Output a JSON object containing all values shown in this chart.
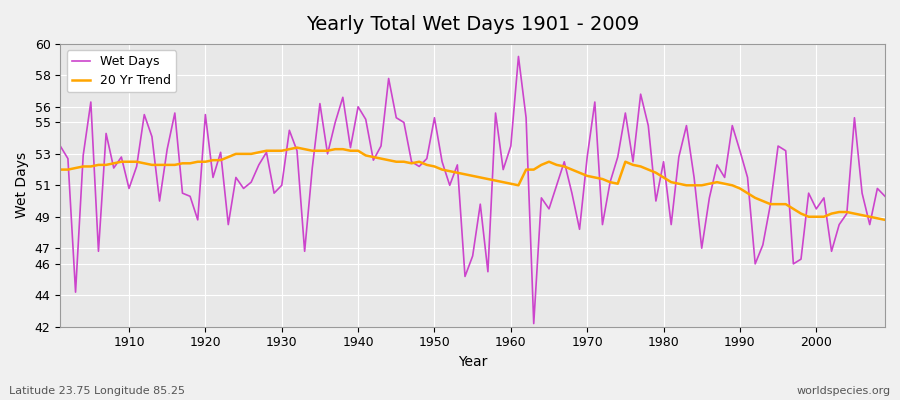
{
  "title": "Yearly Total Wet Days 1901 - 2009",
  "xlabel": "Year",
  "ylabel": "Wet Days",
  "footnote_left": "Latitude 23.75 Longitude 85.25",
  "footnote_right": "worldspecies.org",
  "line_color": "#CC44CC",
  "trend_color": "#FFA500",
  "background_color": "#E8E8E8",
  "ylim": [
    42,
    60
  ],
  "yticks": [
    42,
    44,
    46,
    47,
    49,
    51,
    53,
    55,
    56,
    58,
    60
  ],
  "years": [
    1901,
    1902,
    1903,
    1904,
    1905,
    1906,
    1907,
    1908,
    1909,
    1910,
    1911,
    1912,
    1913,
    1914,
    1915,
    1916,
    1917,
    1918,
    1919,
    1920,
    1921,
    1922,
    1923,
    1924,
    1925,
    1926,
    1927,
    1928,
    1929,
    1930,
    1931,
    1932,
    1933,
    1934,
    1935,
    1936,
    1937,
    1938,
    1939,
    1940,
    1941,
    1942,
    1943,
    1944,
    1945,
    1946,
    1947,
    1948,
    1949,
    1950,
    1951,
    1952,
    1953,
    1954,
    1955,
    1956,
    1957,
    1958,
    1959,
    1960,
    1961,
    1962,
    1963,
    1964,
    1965,
    1966,
    1967,
    1968,
    1969,
    1970,
    1971,
    1972,
    1973,
    1974,
    1975,
    1976,
    1977,
    1978,
    1979,
    1980,
    1981,
    1982,
    1983,
    1984,
    1985,
    1986,
    1987,
    1988,
    1989,
    1990,
    1991,
    1992,
    1993,
    1994,
    1995,
    1996,
    1997,
    1998,
    1999,
    2000,
    2001,
    2002,
    2003,
    2004,
    2005,
    2006,
    2007,
    2008,
    2009
  ],
  "wet_days": [
    53.5,
    52.7,
    44.2,
    52.9,
    56.3,
    46.8,
    54.3,
    52.1,
    52.8,
    50.8,
    52.2,
    55.5,
    54.1,
    50.0,
    53.3,
    55.6,
    50.5,
    50.3,
    48.8,
    55.5,
    51.5,
    53.1,
    48.5,
    51.5,
    50.8,
    51.2,
    52.3,
    53.1,
    50.5,
    51.0,
    54.5,
    53.2,
    46.8,
    52.1,
    56.2,
    53.0,
    55.0,
    56.6,
    53.4,
    56.0,
    55.2,
    52.6,
    53.5,
    57.8,
    55.3,
    55.0,
    52.5,
    52.2,
    52.7,
    55.3,
    52.5,
    51.0,
    52.3,
    45.2,
    46.5,
    49.8,
    45.5,
    55.6,
    52.0,
    53.5,
    59.2,
    55.3,
    42.2,
    50.2,
    49.5,
    51.0,
    52.5,
    50.5,
    48.2,
    52.8,
    56.3,
    48.5,
    51.2,
    52.8,
    55.6,
    52.5,
    56.8,
    54.8,
    50.0,
    52.5,
    48.5,
    52.8,
    54.8,
    51.5,
    47.0,
    50.2,
    52.3,
    51.5,
    54.8,
    53.2,
    51.5,
    46.0,
    47.2,
    49.8,
    53.5,
    53.2,
    46.0,
    46.3,
    50.5,
    49.5,
    50.2,
    46.8,
    48.5,
    49.2,
    55.3,
    50.5,
    48.5,
    50.8,
    50.3
  ],
  "trend": [
    52.0,
    52.0,
    52.1,
    52.2,
    52.2,
    52.3,
    52.3,
    52.4,
    52.5,
    52.5,
    52.5,
    52.4,
    52.3,
    52.3,
    52.3,
    52.3,
    52.4,
    52.4,
    52.5,
    52.5,
    52.6,
    52.6,
    52.8,
    53.0,
    53.0,
    53.0,
    53.1,
    53.2,
    53.2,
    53.2,
    53.3,
    53.4,
    53.3,
    53.2,
    53.2,
    53.2,
    53.3,
    53.3,
    53.2,
    53.2,
    52.9,
    52.8,
    52.7,
    52.6,
    52.5,
    52.5,
    52.4,
    52.5,
    52.3,
    52.2,
    52.0,
    51.9,
    51.8,
    51.7,
    51.6,
    51.5,
    51.4,
    51.3,
    51.2,
    51.1,
    51.0,
    52.0,
    52.0,
    52.3,
    52.5,
    52.3,
    52.2,
    52.0,
    51.8,
    51.6,
    51.5,
    51.4,
    51.2,
    51.1,
    52.5,
    52.3,
    52.2,
    52.0,
    51.8,
    51.5,
    51.2,
    51.1,
    51.0,
    51.0,
    51.0,
    51.1,
    51.2,
    51.1,
    51.0,
    50.8,
    50.5,
    50.2,
    50.0,
    49.8,
    49.8,
    49.8,
    49.5,
    49.2,
    49.0,
    49.0,
    49.0,
    49.2,
    49.3,
    49.3,
    49.2,
    49.1,
    49.0,
    48.9,
    48.8
  ]
}
